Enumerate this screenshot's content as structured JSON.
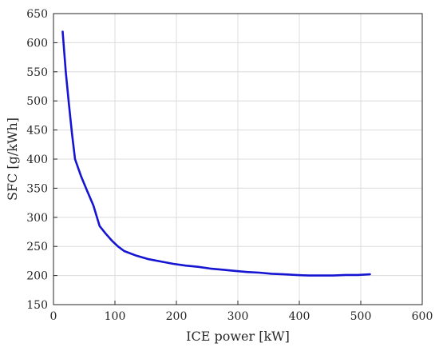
{
  "chart_data": {
    "type": "line",
    "xlabel": "ICE power [kW]",
    "ylabel": "SFC [g/kWh]",
    "xlim": [
      0,
      600
    ],
    "ylim": [
      150,
      650
    ],
    "xticks": [
      "0",
      "100",
      "200",
      "300",
      "400",
      "500",
      "600"
    ],
    "yticks": [
      "150",
      "200",
      "250",
      "300",
      "350",
      "400",
      "450",
      "500",
      "550",
      "600",
      "650"
    ],
    "grid": true,
    "series": [
      {
        "color": "#1414d2",
        "x": [
          15,
          20,
          25,
          30,
          35,
          45,
          55,
          65,
          75,
          85,
          95,
          105,
          115,
          135,
          155,
          175,
          195,
          215,
          235,
          255,
          275,
          295,
          315,
          335,
          355,
          375,
          395,
          415,
          435,
          455,
          475,
          495,
          515
        ],
        "y": [
          619,
          550,
          495,
          445,
          400,
          370,
          345,
          320,
          285,
          272,
          260,
          250,
          242,
          234,
          228,
          224,
          220,
          217,
          215,
          212,
          210,
          208,
          206,
          205,
          203,
          202,
          201,
          200,
          200,
          200,
          201,
          201,
          202
        ]
      }
    ]
  }
}
